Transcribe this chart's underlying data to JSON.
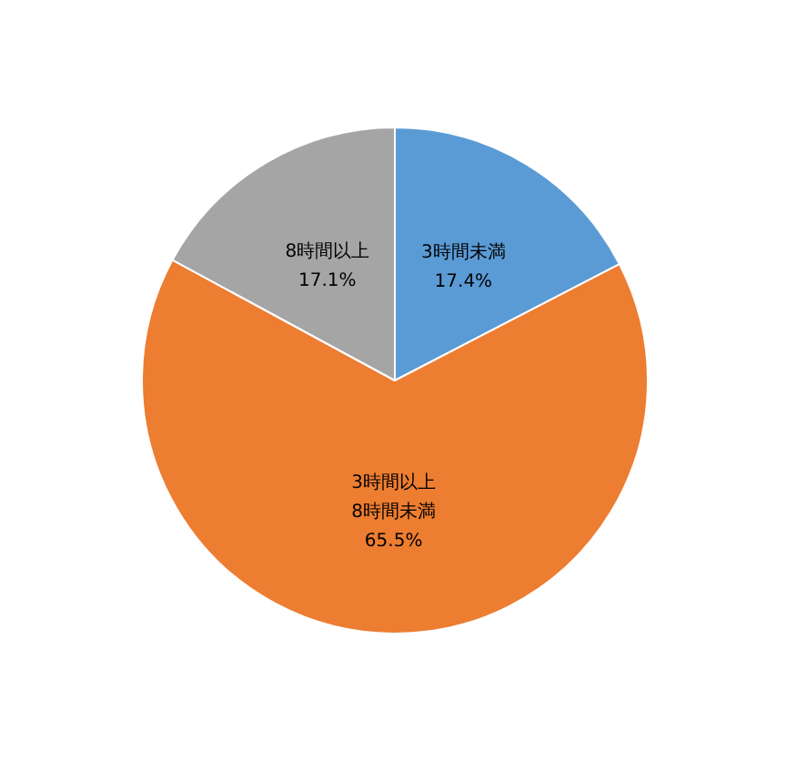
{
  "chart_data": {
    "type": "pie",
    "categories": [
      "3時間未満",
      "3時間以上8時間未満",
      "8時間以上"
    ],
    "values": [
      17.4,
      65.5,
      17.1
    ],
    "colors": [
      "#5b9bd5",
      "#ed7d31",
      "#a5a5a5"
    ],
    "value_labels": [
      "17.4%",
      "65.5%",
      "17.1%"
    ],
    "legend": false
  }
}
